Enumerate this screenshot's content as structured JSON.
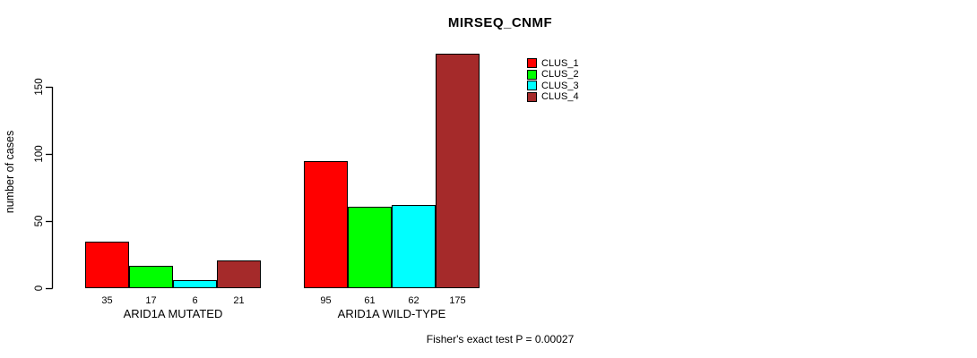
{
  "figure": {
    "title": "MIRSEQ_CNMF",
    "y_axis_label": "number of cases",
    "footer_annotation": "Fisher's exact test P = 0.00027"
  },
  "legend": {
    "position": "top-right",
    "items": [
      {
        "label": "CLUS_1",
        "color": "#FF0000"
      },
      {
        "label": "CLUS_2",
        "color": "#00FF00"
      },
      {
        "label": "CLUS_3",
        "color": "#00FFFF"
      },
      {
        "label": "CLUS_4",
        "color": "#A52A2A"
      }
    ]
  },
  "chart_data": {
    "type": "bar",
    "title": "MIRSEQ_CNMF",
    "xlabel": "",
    "ylabel": "number of cases",
    "ylim": [
      0,
      175
    ],
    "yticks": [
      0,
      50,
      100,
      150
    ],
    "grid": false,
    "legend_position": "top-right",
    "categories": [
      "ARID1A MUTATED",
      "ARID1A WILD-TYPE"
    ],
    "series": [
      {
        "name": "CLUS_1",
        "color": "#FF0000",
        "values": [
          35,
          95
        ]
      },
      {
        "name": "CLUS_2",
        "color": "#00FF00",
        "values": [
          17,
          61
        ]
      },
      {
        "name": "CLUS_3",
        "color": "#00FFFF",
        "values": [
          6,
          62
        ]
      },
      {
        "name": "CLUS_4",
        "color": "#A52A2A",
        "values": [
          21,
          175
        ]
      }
    ],
    "bar_value_labels": [
      [
        35,
        17,
        6,
        21
      ],
      [
        95,
        61,
        62,
        175
      ]
    ],
    "annotation": "Fisher's exact test P = 0.00027"
  }
}
